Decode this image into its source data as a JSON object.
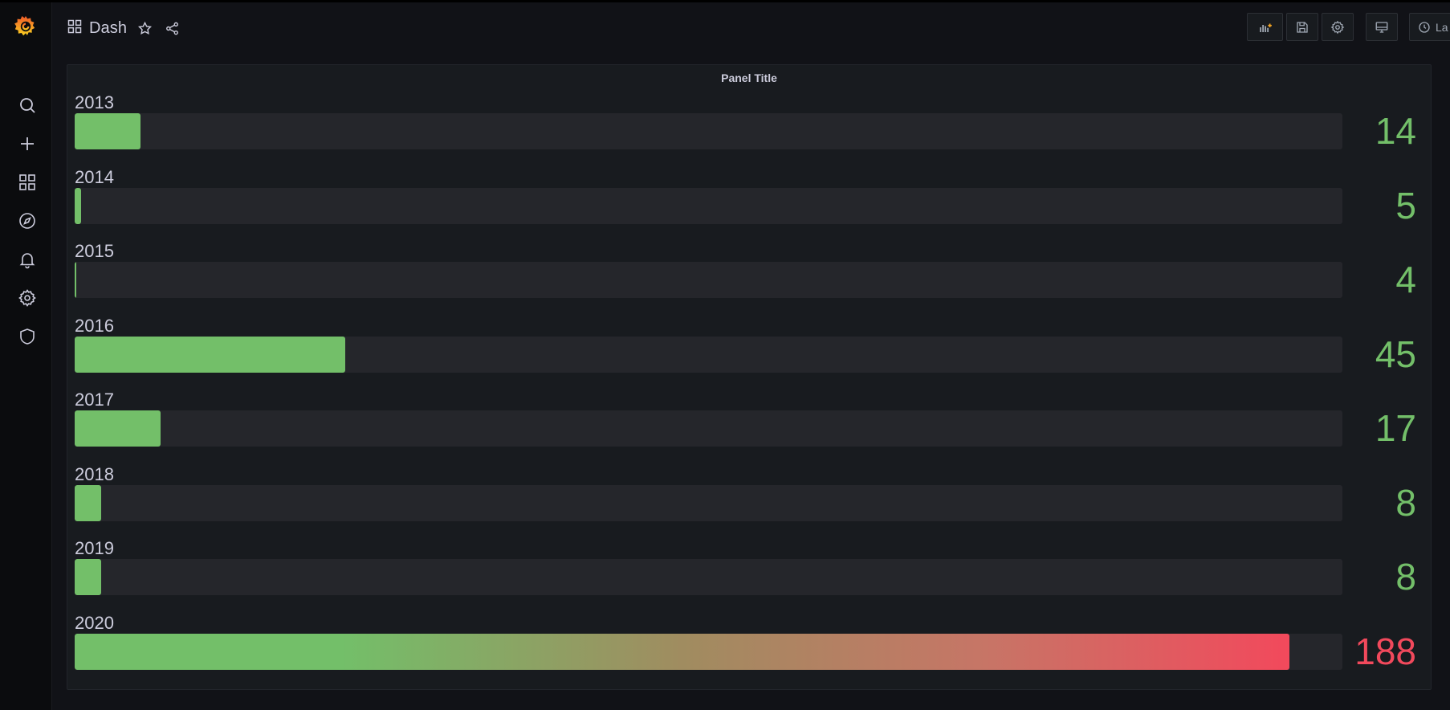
{
  "app": {
    "name": "Grafana"
  },
  "sidebar": {
    "items": [
      {
        "name": "search-icon"
      },
      {
        "name": "plus-icon"
      },
      {
        "name": "dashboards-icon"
      },
      {
        "name": "explore-compass-icon"
      },
      {
        "name": "alerting-bell-icon"
      },
      {
        "name": "configuration-gear-icon"
      },
      {
        "name": "server-admin-shield-icon"
      }
    ]
  },
  "navbar": {
    "dashboard_title": "Dash",
    "time_picker_label": "La"
  },
  "panel": {
    "title": "Panel Title"
  },
  "colors": {
    "green": "#73bf69",
    "red": "#f2495c",
    "accent_orange": "#f5a623"
  },
  "chart_data": {
    "type": "bar",
    "orientation": "horizontal",
    "title": "Panel Title",
    "categories": [
      "2013",
      "2014",
      "2015",
      "2016",
      "2017",
      "2018",
      "2019",
      "2020"
    ],
    "values": [
      14,
      5,
      4,
      45,
      17,
      8,
      8,
      188
    ],
    "display_values": [
      "14",
      "5",
      "4",
      "45",
      "17",
      "8",
      "8",
      "188"
    ],
    "value_colors": [
      "#73bf69",
      "#73bf69",
      "#73bf69",
      "#73bf69",
      "#73bf69",
      "#73bf69",
      "#73bf69",
      "#f2495c"
    ],
    "min": 4,
    "max": 196,
    "gradient_mode": "green-to-red"
  }
}
